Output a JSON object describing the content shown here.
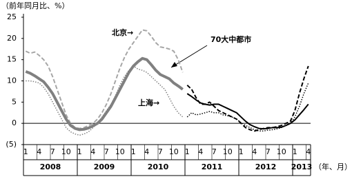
{
  "chart_data": {
    "type": "line",
    "y_label": "（前年同月比、%）",
    "x_unit_label": "（年、月）",
    "annotations": [
      "北京→",
      "上海→",
      "70大中都市"
    ],
    "categories": [
      "1",
      null,
      null,
      "4",
      null,
      null,
      "7",
      null,
      null,
      "10",
      null,
      null,
      "1",
      null,
      null,
      "4",
      null,
      null,
      "7",
      null,
      null,
      "10",
      null,
      null,
      "1",
      null,
      null,
      "4",
      null,
      null,
      "7",
      null,
      null,
      "10",
      null,
      null,
      "1",
      null,
      null,
      "4",
      null,
      null,
      "7",
      null,
      null,
      "10",
      null,
      null,
      "1",
      null,
      null,
      "4",
      null,
      null,
      "7",
      null,
      null,
      "10",
      null,
      null,
      "1",
      null,
      null,
      "4"
    ],
    "years": [
      "2008",
      "2009",
      "2010",
      "2011",
      "2012",
      "2013"
    ],
    "ylim": [
      -5,
      25
    ],
    "yticks": [
      25,
      20,
      15,
      10,
      5,
      0,
      {
        "value": -5,
        "label": "(5)"
      }
    ],
    "series": [
      {
        "color": "#a6a6a6",
        "dash": "dashed",
        "width": 2,
        "values": [
          17,
          16.5,
          16.8,
          16,
          15,
          13.5,
          11,
          8,
          5,
          2,
          0,
          -1,
          -1.2,
          -1,
          -0.5,
          0,
          1,
          2.5,
          4.5,
          7,
          10,
          13,
          15.5,
          17.5,
          19,
          20.5,
          22,
          21.8,
          20.5,
          19,
          18,
          17.8,
          17.5,
          17,
          15,
          12,
          null,
          null,
          null,
          null,
          null,
          null,
          null,
          null,
          null,
          null,
          null,
          null,
          null,
          null,
          null,
          null,
          null,
          null,
          null,
          null,
          null,
          null,
          null,
          null,
          null,
          null,
          null,
          null
        ]
      },
      {
        "color": "#000000",
        "dash": "dashed",
        "width": 2,
        "values": [
          null,
          null,
          null,
          null,
          null,
          null,
          null,
          null,
          null,
          null,
          null,
          null,
          null,
          null,
          null,
          null,
          null,
          null,
          null,
          null,
          null,
          null,
          null,
          null,
          null,
          null,
          null,
          null,
          null,
          null,
          null,
          null,
          null,
          null,
          null,
          null,
          9,
          8,
          6,
          4.5,
          4.5,
          5,
          4,
          3,
          2.5,
          2,
          1.5,
          1,
          0,
          -1,
          -1.5,
          -1.8,
          -1.5,
          -1.2,
          -1,
          -1,
          -0.8,
          -0.5,
          0,
          0.5,
          3,
          7,
          10.5,
          13.5
        ]
      },
      {
        "color": "#808080",
        "dash": "dotted",
        "width": 1.5,
        "values": [
          10,
          10,
          9.8,
          9.5,
          8.5,
          7,
          5,
          3,
          1,
          -1,
          -2,
          -2.5,
          -2.8,
          -2.5,
          -2,
          -1,
          0,
          1.5,
          3,
          4.5,
          6.5,
          9,
          11,
          12.5,
          13.5,
          12.8,
          12.5,
          12,
          11,
          10,
          9,
          8,
          6,
          4,
          2.5,
          1.5,
          null,
          null,
          null,
          null,
          null,
          null,
          null,
          null,
          null,
          null,
          null,
          null,
          null,
          null,
          null,
          null,
          null,
          null,
          null,
          null,
          null,
          null,
          null,
          null,
          null,
          null,
          null,
          null
        ]
      },
      {
        "color": "#000000",
        "dash": "dotted",
        "width": 1.5,
        "values": [
          null,
          null,
          null,
          null,
          null,
          null,
          null,
          null,
          null,
          null,
          null,
          null,
          null,
          null,
          null,
          null,
          null,
          null,
          null,
          null,
          null,
          null,
          null,
          null,
          null,
          null,
          null,
          null,
          null,
          null,
          null,
          null,
          null,
          null,
          null,
          null,
          1.5,
          2.5,
          2,
          2.2,
          2.5,
          2.8,
          2.5,
          2.5,
          2,
          1.8,
          1.5,
          1,
          0.2,
          -0.5,
          -1,
          -1.5,
          -1.8,
          -1.8,
          -1.6,
          -1.5,
          -1.3,
          -1,
          -0.5,
          0,
          1.5,
          4,
          7,
          9.5
        ]
      },
      {
        "color": "#808080",
        "dash": "solid",
        "width": 4,
        "values": [
          12.2,
          11.8,
          11.2,
          10.5,
          9.8,
          8.5,
          7,
          5,
          3,
          1,
          -0.5,
          -1.2,
          -1.5,
          -1.4,
          -1.1,
          -0.6,
          0,
          1,
          2.5,
          4,
          6,
          8,
          10,
          12,
          13.5,
          14.5,
          15.3,
          15,
          13.8,
          12.5,
          11.5,
          11,
          10.5,
          9.5,
          8.8,
          8,
          null,
          null,
          null,
          null,
          null,
          null,
          null,
          null,
          null,
          null,
          null,
          null,
          null,
          null,
          null,
          null,
          null,
          null,
          null,
          null,
          null,
          null,
          null,
          null,
          null,
          null,
          null,
          null
        ]
      },
      {
        "color": "#000000",
        "dash": "solid",
        "width": 2,
        "values": [
          null,
          null,
          null,
          null,
          null,
          null,
          null,
          null,
          null,
          null,
          null,
          null,
          null,
          null,
          null,
          null,
          null,
          null,
          null,
          null,
          null,
          null,
          null,
          null,
          null,
          null,
          null,
          null,
          null,
          null,
          null,
          null,
          null,
          null,
          null,
          null,
          7,
          6.3,
          5.5,
          4.8,
          4.5,
          4.3,
          4.5,
          4.5,
          4,
          3.5,
          3,
          2.5,
          1.5,
          0.5,
          -0.3,
          -0.8,
          -1.2,
          -1.3,
          -1.2,
          -1,
          -1,
          -0.9,
          -0.5,
          0,
          0.8,
          2,
          3.2,
          4.5
        ]
      }
    ]
  }
}
